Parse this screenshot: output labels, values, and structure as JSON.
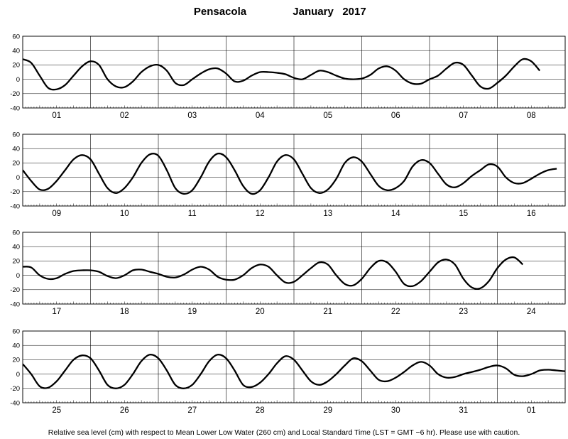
{
  "title": {
    "station": "Pensacola",
    "period": "January   2017"
  },
  "footer": "Relative sea level (cm) with respect to Mean Lower Low Water (260 cm) and Local Standard Time (LST = GMT −6 hr). Please use with caution.",
  "chart_data": {
    "type": "line",
    "xlabel": "",
    "ylabel": "",
    "ylim": [
      -40,
      60
    ],
    "yticks": [
      -40,
      -20,
      0,
      20,
      40,
      60
    ],
    "grid": true,
    "panels": [
      {
        "days": [
          "01",
          "02",
          "03",
          "04",
          "05",
          "06",
          "07",
          "08"
        ],
        "values": [
          28,
          23,
          5,
          -12,
          -14,
          -8,
          5,
          18,
          25,
          20,
          0,
          -10,
          -11,
          -3,
          10,
          18,
          20,
          12,
          -5,
          -8,
          0,
          8,
          14,
          15,
          8,
          -3,
          -2,
          5,
          10,
          10,
          9,
          7,
          2,
          0,
          6,
          12,
          10,
          5,
          1,
          0,
          1,
          6,
          15,
          18,
          12,
          0,
          -6,
          -6,
          0,
          5,
          15,
          23,
          20,
          5,
          -10,
          -13,
          -5,
          5,
          18,
          28,
          25,
          12
        ]
      },
      {
        "days": [
          "09",
          "10",
          "11",
          "12",
          "13",
          "14",
          "15",
          "16"
        ],
        "values": [
          10,
          -5,
          -17,
          -16,
          -5,
          10,
          25,
          31,
          25,
          5,
          -15,
          -22,
          -15,
          0,
          20,
          32,
          30,
          10,
          -15,
          -23,
          -18,
          0,
          22,
          33,
          28,
          10,
          -12,
          -23,
          -18,
          0,
          22,
          31,
          25,
          5,
          -15,
          -22,
          -17,
          -2,
          20,
          28,
          22,
          5,
          -12,
          -18,
          -15,
          -5,
          15,
          24,
          20,
          5,
          -10,
          -14,
          -8,
          2,
          10,
          18,
          15,
          0,
          -8,
          -8,
          -2,
          5,
          10,
          12
        ]
      },
      {
        "days": [
          "17",
          "18",
          "19",
          "20",
          "21",
          "22",
          "23",
          "24"
        ],
        "values": [
          12,
          11,
          0,
          -5,
          -4,
          2,
          6,
          7,
          7,
          5,
          -1,
          -4,
          0,
          7,
          8,
          5,
          2,
          -2,
          -3,
          1,
          8,
          12,
          8,
          -2,
          -6,
          -6,
          0,
          10,
          15,
          12,
          0,
          -10,
          -9,
          0,
          10,
          18,
          15,
          0,
          -12,
          -14,
          -5,
          10,
          20,
          18,
          5,
          -12,
          -15,
          -8,
          5,
          18,
          22,
          15,
          -5,
          -17,
          -18,
          -8,
          10,
          22,
          25,
          15
        ]
      },
      {
        "days": [
          "25",
          "26",
          "27",
          "28",
          "29",
          "30",
          "31",
          "01"
        ],
        "values": [
          14,
          0,
          -17,
          -19,
          -10,
          5,
          20,
          26,
          22,
          5,
          -15,
          -20,
          -15,
          0,
          18,
          27,
          22,
          5,
          -15,
          -20,
          -15,
          0,
          18,
          27,
          22,
          5,
          -15,
          -18,
          -12,
          0,
          15,
          25,
          20,
          5,
          -10,
          -15,
          -10,
          0,
          12,
          22,
          18,
          5,
          -8,
          -10,
          -5,
          3,
          12,
          17,
          12,
          0,
          -5,
          -4,
          0,
          3,
          6,
          10,
          12,
          8,
          -1,
          -3,
          0,
          5,
          6,
          5,
          4,
          5
        ]
      }
    ]
  }
}
